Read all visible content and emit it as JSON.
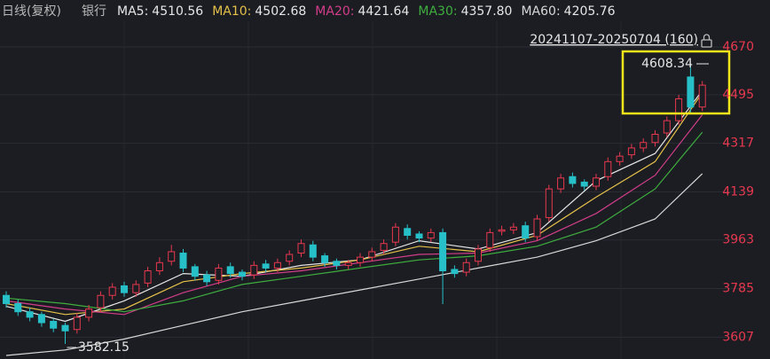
{
  "chart_data": {
    "type": "candlestick",
    "title": "日线(复权)",
    "subtitle": "银行",
    "range_label": "20241107-20250704 (160)",
    "up_color": "#e8384f",
    "down_color": "#27c0c8",
    "ylim": [
      3540,
      4790
    ],
    "yticks": [
      4670,
      4495,
      4317,
      4139,
      3963,
      3785,
      3607
    ],
    "grid": true,
    "open": [
      3760,
      3730,
      3700,
      3690,
      3665,
      3650,
      3635,
      3680,
      3715,
      3760,
      3795,
      3770,
      3805,
      3850,
      3885,
      3915,
      3865,
      3835,
      3815,
      3865,
      3845,
      3835,
      3875,
      3860,
      3885,
      3915,
      3945,
      3905,
      3885,
      3870,
      3880,
      3900,
      3925,
      3955,
      4005,
      3985,
      3970,
      3990,
      3855,
      3845,
      3885,
      3935,
      3995,
      4000,
      4015,
      3975,
      4045,
      4150,
      4195,
      4175,
      4160,
      4195,
      4250,
      4275,
      4300,
      4320,
      4355,
      4400,
      4560,
      4450
    ],
    "high": [
      3775,
      3745,
      3715,
      3700,
      3675,
      3660,
      3695,
      3725,
      3775,
      3805,
      3810,
      3815,
      3865,
      3900,
      3945,
      3930,
      3875,
      3850,
      3875,
      3880,
      3855,
      3885,
      3890,
      3895,
      3925,
      3965,
      3960,
      3915,
      3895,
      3890,
      3915,
      3935,
      3965,
      4025,
      4020,
      3995,
      4005,
      4005,
      3870,
      3895,
      3945,
      4005,
      4015,
      4025,
      4030,
      4055,
      4165,
      4205,
      4210,
      4185,
      4205,
      4265,
      4285,
      4315,
      4335,
      4365,
      4415,
      4495,
      4608.34,
      4545
    ],
    "low": [
      3715,
      3685,
      3665,
      3645,
      3625,
      3582.15,
      3620,
      3665,
      3700,
      3745,
      3755,
      3755,
      3790,
      3835,
      3870,
      3845,
      3815,
      3795,
      3800,
      3825,
      3815,
      3820,
      3845,
      3845,
      3870,
      3900,
      3885,
      3865,
      3855,
      3855,
      3865,
      3885,
      3910,
      3940,
      3965,
      3955,
      3955,
      3728,
      3825,
      3830,
      3870,
      3920,
      3980,
      3985,
      3955,
      3960,
      4030,
      4135,
      4155,
      4145,
      4145,
      4180,
      4235,
      4260,
      4285,
      4305,
      4340,
      4385,
      4430,
      4435
    ],
    "close": [
      3730,
      3700,
      3680,
      3660,
      3640,
      3630,
      3680,
      3710,
      3760,
      3790,
      3770,
      3800,
      3850,
      3880,
      3920,
      3860,
      3830,
      3810,
      3860,
      3840,
      3830,
      3870,
      3860,
      3880,
      3910,
      3950,
      3900,
      3880,
      3870,
      3880,
      3900,
      3920,
      3950,
      4010,
      3980,
      3970,
      3990,
      3850,
      3840,
      3880,
      3930,
      3990,
      4000,
      4010,
      3970,
      4040,
      4150,
      4190,
      4170,
      4160,
      4190,
      4250,
      4270,
      4300,
      4320,
      4350,
      4400,
      4480,
      4450,
      4530
    ],
    "series": [
      {
        "name": "MA5:",
        "color": "#e6e6e6",
        "x": [
          0,
          5,
          10,
          15,
          20,
          25,
          30,
          35,
          40,
          45,
          50,
          55,
          59
        ],
        "values": [
          3720,
          3665,
          3740,
          3840,
          3830,
          3870,
          3890,
          3960,
          3930,
          3990,
          4180,
          4280,
          4510.56
        ],
        "value_labels": [
          null,
          null,
          null,
          null,
          null,
          null,
          null,
          null,
          null,
          null,
          null,
          null,
          "4510.56"
        ]
      },
      {
        "name": "MA10:",
        "color": "#e5c04a",
        "x": [
          0,
          5,
          10,
          15,
          20,
          25,
          30,
          35,
          40,
          45,
          50,
          55,
          59
        ],
        "values": [
          3730,
          3690,
          3710,
          3810,
          3840,
          3860,
          3890,
          3940,
          3920,
          3980,
          4120,
          4250,
          4502.68
        ],
        "value_labels": [
          null,
          null,
          null,
          null,
          null,
          null,
          null,
          null,
          null,
          null,
          null,
          null,
          "4502.68"
        ]
      },
      {
        "name": "MA20:",
        "color": "#d23d8a",
        "x": [
          0,
          5,
          10,
          15,
          20,
          25,
          30,
          35,
          40,
          45,
          50,
          55,
          59
        ],
        "values": [
          3740,
          3710,
          3690,
          3770,
          3830,
          3850,
          3880,
          3910,
          3915,
          3960,
          4060,
          4200,
          4421.64
        ],
        "value_labels": [
          null,
          null,
          null,
          null,
          null,
          null,
          null,
          null,
          null,
          null,
          null,
          null,
          "4421.64"
        ]
      },
      {
        "name": "MA30:",
        "color": "#3fae3f",
        "x": [
          0,
          5,
          10,
          15,
          20,
          25,
          30,
          35,
          40,
          45,
          50,
          55,
          59
        ],
        "values": [
          3750,
          3730,
          3700,
          3740,
          3800,
          3830,
          3860,
          3890,
          3905,
          3940,
          4010,
          4150,
          4357.8
        ],
        "value_labels": [
          null,
          null,
          null,
          null,
          null,
          null,
          null,
          null,
          null,
          null,
          null,
          null,
          "4357.80"
        ]
      },
      {
        "name": "MA60:",
        "color": "#d8d8d8",
        "x": [
          0,
          5,
          10,
          15,
          20,
          25,
          30,
          35,
          40,
          45,
          50,
          55,
          59
        ],
        "values": [
          3540,
          3560,
          3600,
          3650,
          3700,
          3740,
          3780,
          3820,
          3860,
          3900,
          3960,
          4040,
          4205.76
        ],
        "value_labels": [
          null,
          null,
          null,
          null,
          null,
          null,
          null,
          null,
          null,
          null,
          null,
          null,
          "4205.76"
        ]
      }
    ]
  }
}
